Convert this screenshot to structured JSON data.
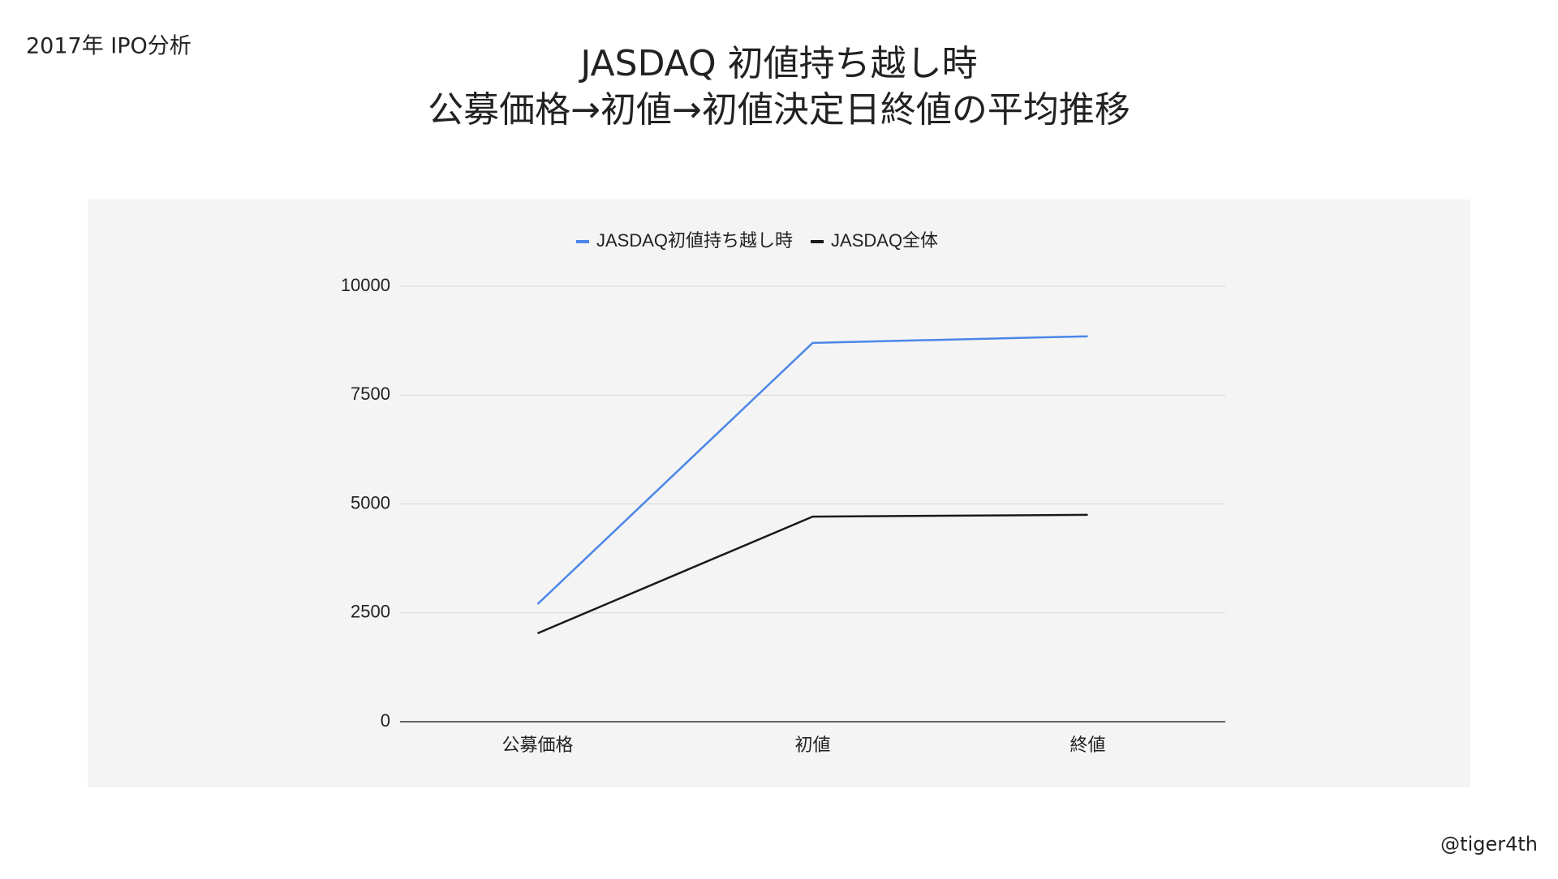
{
  "header": "2017年 IPO分析",
  "footer": "@tiger4th",
  "chart_data": {
    "type": "line",
    "title": [
      "JASDAQ 初値持ち越し時",
      "公募価格→初値→初値決定日終値の平均推移"
    ],
    "categories": [
      "公募価格",
      "初値",
      "終値"
    ],
    "series": [
      {
        "name": "JASDAQ初値持ち越し時",
        "color": "#4a86e8",
        "values": [
          2700,
          8700,
          8850
        ]
      },
      {
        "name": "JASDAQ全体",
        "color": "#1a1a1a",
        "values": [
          2030,
          4710,
          4750
        ]
      }
    ],
    "ylim": [
      0,
      10000
    ],
    "yticks": [
      0,
      2500,
      5000,
      7500,
      10000
    ],
    "grid": true,
    "legend": "top"
  }
}
